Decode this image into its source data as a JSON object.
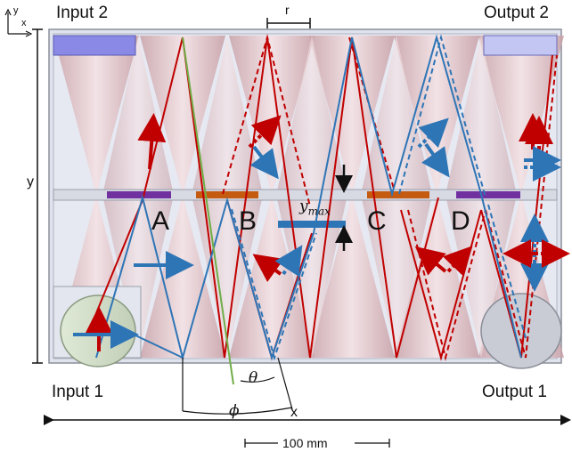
{
  "labels": {
    "input_2": "Input 2",
    "output_2": "Output 2",
    "input_1": "Input 1",
    "output_1": "Output 1",
    "node_a": "A",
    "node_b": "B",
    "node_c": "C",
    "node_d": "D",
    "y_max": "y",
    "y_max_sub": "max",
    "r": "r",
    "theta": "θ",
    "phi": "ϕ",
    "x_dim": "x",
    "y_dim": "y",
    "scale_bar": "100 mm",
    "axis_y": "y",
    "axis_x": "x"
  },
  "colors": {
    "beam_red": "#c00000",
    "beam_blue": "#2e75b6",
    "green_line": "#70ad47",
    "mirror_purple": "#7030a0",
    "mirror_orange": "#c55a11",
    "mirror_blue": "#2e75b6",
    "port_blue": "#8a8ae6",
    "cone_pink": "#e8c8cc",
    "frame_gray": "#d9dde8"
  },
  "icons": [
    "coordinate-axes-icon",
    "dimension-arrow-icon"
  ]
}
